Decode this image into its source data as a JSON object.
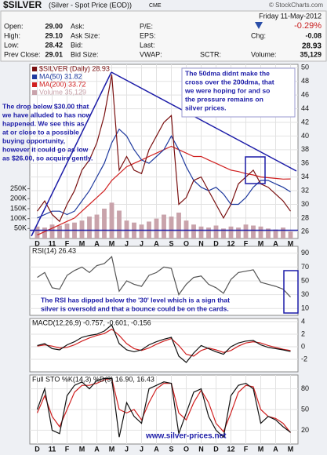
{
  "header": {
    "title": "$SILVER",
    "subtitle": "(Silver - Spot Price (EOD))",
    "exchange": "CME",
    "credit": "© StockCharts.com",
    "date": "Friday 11-May-2012",
    "change_pct": "-0.29%",
    "last": "28.93",
    "cells": [
      {
        "label": "Open:",
        "value": "29.00"
      },
      {
        "label": "High:",
        "value": "29.10"
      },
      {
        "label": "Low:",
        "value": "28.42"
      },
      {
        "label": "Prev Close:",
        "value": "29.01"
      },
      {
        "label": "Ask:"
      },
      {
        "label": "Ask Size:"
      },
      {
        "label": "Bid:"
      },
      {
        "label": "Bid Size:"
      },
      {
        "label": "P/E:"
      },
      {
        "label": "EPS:"
      },
      {
        "label": "Last:"
      },
      {
        "label": "VWAP:"
      },
      {
        "label": "SCTR:"
      },
      {
        "label": "Chg:",
        "value": "-0.08"
      },
      {
        "label": "Volume:",
        "value": "35,129"
      }
    ]
  },
  "chart_data": [
    {
      "type": "line",
      "x": [
        0,
        0.5,
        1,
        1.5,
        2,
        2.5,
        3,
        3.5,
        4,
        4.5,
        5,
        5.5,
        6,
        6.5,
        7,
        7.5,
        8,
        8.5,
        9,
        9.5,
        10,
        10.5,
        11,
        11.5,
        12,
        12.5,
        13,
        13.5,
        14,
        14.5,
        15,
        15.5,
        16,
        16.5,
        17
      ],
      "xlim": [
        -0.5,
        17.5
      ],
      "xticks": [
        {
          "value": 0,
          "label": "D"
        },
        {
          "value": 1,
          "label": "11"
        },
        {
          "value": 2,
          "label": "F"
        },
        {
          "value": 3,
          "label": "M"
        },
        {
          "value": 4,
          "label": "A"
        },
        {
          "value": 5,
          "label": "M"
        },
        {
          "value": 6,
          "label": "J"
        },
        {
          "value": 7,
          "label": "J"
        },
        {
          "value": 8,
          "label": "A"
        },
        {
          "value": 9,
          "label": "S"
        },
        {
          "value": 10,
          "label": "O"
        },
        {
          "value": 11,
          "label": "N"
        },
        {
          "value": 12,
          "label": "D"
        },
        {
          "value": 13,
          "label": "12"
        },
        {
          "value": 14,
          "label": "F"
        },
        {
          "value": 15,
          "label": "M"
        },
        {
          "value": 16,
          "label": "A"
        },
        {
          "value": 17,
          "label": "M"
        }
      ],
      "ylim": [
        25,
        50.5
      ],
      "yticks": [
        26,
        28,
        30,
        32,
        34,
        36,
        38,
        40,
        42,
        44,
        46,
        48,
        50
      ],
      "y2lim": [
        0,
        875000
      ],
      "y2ticks": [
        {
          "value": 50000,
          "label": "50K"
        },
        {
          "value": 100000,
          "label": "100K"
        },
        {
          "value": 150000,
          "label": "150K"
        },
        {
          "value": 200000,
          "label": "200K"
        },
        {
          "value": 250000,
          "label": "250K"
        }
      ],
      "grid": true,
      "series": [
        {
          "name": "Volume 35,129",
          "kind": "bar",
          "axis": "y2",
          "color": "#c9a3ab",
          "values": [
            60000,
            55000,
            70000,
            65000,
            75000,
            80000,
            90000,
            110000,
            120000,
            150000,
            180000,
            140000,
            90000,
            80000,
            70000,
            85000,
            100000,
            120000,
            110000,
            130000,
            90000,
            70000,
            60000,
            55000,
            65000,
            50000,
            60000,
            55000,
            70000,
            65000,
            60000,
            50000,
            45000,
            55000,
            35129
          ]
        },
        {
          "name": "MA(200) 33.72",
          "color": "#d02020",
          "values": [
            25.5,
            26,
            26.5,
            27,
            27.5,
            28,
            29,
            30,
            31,
            32,
            33.5,
            34.5,
            35.5,
            36,
            36.5,
            37,
            37.5,
            38,
            38.5,
            38,
            37.5,
            37,
            37,
            36.5,
            36,
            35.5,
            35,
            34.8,
            34.5,
            34.3,
            34,
            33.9,
            33.8,
            33.7,
            33.72
          ]
        },
        {
          "name": "MA(50) 31.82",
          "color": "#1f3a9e",
          "values": [
            28,
            28.5,
            29,
            29,
            28.5,
            29,
            30.5,
            32,
            34,
            36,
            39,
            41,
            40,
            38,
            36.5,
            36,
            37,
            38,
            40,
            38,
            35.5,
            33.5,
            32.5,
            32,
            32.5,
            31.5,
            30,
            30,
            31,
            32.5,
            33.5,
            33.5,
            33,
            32.5,
            31.82
          ]
        },
        {
          "name": "$SILVER (Daily) 28.93",
          "color": "#7a1010",
          "values": [
            29,
            30.5,
            28.5,
            27.5,
            30,
            32,
            35,
            36.5,
            39,
            43,
            49,
            35,
            37,
            35,
            34.5,
            38,
            40,
            42,
            43,
            30,
            31,
            33.5,
            34,
            32,
            30,
            28,
            30,
            33,
            34,
            35,
            33,
            32.5,
            31.5,
            30.5,
            29
          ]
        }
      ],
      "annotations": [
        {
          "lines": [
            "The 50dma didnt make the",
            "cross over the 200dma, that",
            "we were hoping for and so",
            "the pressure remains on",
            "silver prices."
          ]
        },
        {
          "lines": [
            "The drop below $30.00 that",
            "we have alluded to has now",
            "happened. We see this as",
            "at or close to a possible",
            "buying opportunity,",
            "however it could go as low",
            "as $26.00, so acquire gently."
          ]
        }
      ]
    },
    {
      "type": "line",
      "title": "RSI(14) 26.43",
      "x": [
        0,
        0.5,
        1,
        1.5,
        2,
        2.5,
        3,
        3.5,
        4,
        4.5,
        5,
        5.5,
        6,
        6.5,
        7,
        7.5,
        8,
        8.5,
        9,
        9.5,
        10,
        10.5,
        11,
        11.5,
        12,
        12.5,
        13,
        13.5,
        14,
        14.5,
        15,
        15.5,
        16,
        16.5,
        17
      ],
      "xlim": [
        -0.5,
        17.5
      ],
      "ylim": [
        0,
        100
      ],
      "yticks": [
        10,
        30,
        50,
        70,
        90
      ],
      "grid": true,
      "series": [
        {
          "color": "#555555",
          "values": [
            55,
            62,
            40,
            38,
            58,
            65,
            70,
            62,
            72,
            75,
            85,
            35,
            50,
            45,
            42,
            58,
            62,
            70,
            68,
            30,
            45,
            55,
            57,
            45,
            40,
            32,
            52,
            62,
            64,
            66,
            48,
            45,
            42,
            38,
            26.43
          ]
        }
      ],
      "annotations": [
        {
          "lines": [
            "The RSI has dipped below the '30' level which is a sign that",
            "silver is oversold and that a bounce could be on the cards."
          ]
        }
      ]
    },
    {
      "type": "line",
      "title": "MACD(12,26,9) -0.757, -0.601, -0.156",
      "x": [
        0,
        0.5,
        1,
        1.5,
        2,
        2.5,
        3,
        3.5,
        4,
        4.5,
        5,
        5.5,
        6,
        6.5,
        7,
        7.5,
        8,
        8.5,
        9,
        9.5,
        10,
        10.5,
        11,
        11.5,
        12,
        12.5,
        13,
        13.5,
        14,
        14.5,
        15,
        15.5,
        16,
        16.5,
        17
      ],
      "xlim": [
        -0.5,
        17.5
      ],
      "ylim": [
        -4,
        4.5
      ],
      "yticks": [
        -2,
        0,
        2,
        4
      ],
      "grid": true,
      "series": [
        {
          "color": "#d02020",
          "values": [
            0.1,
            0.3,
            0.1,
            -0.2,
            -0.1,
            0.3,
            0.9,
            1.4,
            1.8,
            2.1,
            2.8,
            1.8,
            0.5,
            -0.3,
            -0.6,
            -0.2,
            0.4,
            0.9,
            1.3,
            0.2,
            -1.2,
            -1.5,
            -0.6,
            -0.2,
            -0.5,
            -0.9,
            -0.6,
            0.1,
            0.6,
            0.8,
            0.6,
            0.2,
            -0.1,
            -0.4,
            -0.601
          ]
        },
        {
          "color": "#111111",
          "values": [
            0.2,
            0.5,
            -0.3,
            -0.5,
            0.3,
            0.8,
            1.5,
            1.8,
            2.0,
            2.5,
            3.5,
            0.5,
            -0.5,
            -0.8,
            -0.5,
            0.3,
            0.8,
            1.2,
            1.5,
            -1.5,
            -2.5,
            -1.0,
            0.2,
            -0.3,
            -0.8,
            -1.2,
            0,
            0.6,
            0.9,
            1.0,
            0.3,
            -0.1,
            -0.3,
            -0.5,
            -0.757
          ]
        }
      ]
    },
    {
      "type": "line",
      "title": "Full STO %K(14,3) %D(3) 16.90, 16.43",
      "x": [
        0,
        0.5,
        1,
        1.5,
        2,
        2.5,
        3,
        3.5,
        4,
        4.5,
        5,
        5.5,
        6,
        6.5,
        7,
        7.5,
        8,
        8.5,
        9,
        9.5,
        10,
        10.5,
        11,
        11.5,
        12,
        12.5,
        13,
        13.5,
        14,
        14.5,
        15,
        15.5,
        16,
        16.5,
        17
      ],
      "xlim": [
        -0.5,
        17.5
      ],
      "xticks": [
        {
          "value": 0,
          "label": "D"
        },
        {
          "value": 1,
          "label": "11"
        },
        {
          "value": 2,
          "label": "F"
        },
        {
          "value": 3,
          "label": "M"
        },
        {
          "value": 4,
          "label": "A"
        },
        {
          "value": 5,
          "label": "M"
        },
        {
          "value": 6,
          "label": "J"
        },
        {
          "value": 7,
          "label": "J"
        },
        {
          "value": 8,
          "label": "A"
        },
        {
          "value": 9,
          "label": "S"
        },
        {
          "value": 10,
          "label": "O"
        },
        {
          "value": 11,
          "label": "N"
        },
        {
          "value": 12,
          "label": "D"
        },
        {
          "value": 13,
          "label": "12"
        },
        {
          "value": 14,
          "label": "F"
        },
        {
          "value": 15,
          "label": "M"
        },
        {
          "value": 16,
          "label": "A"
        },
        {
          "value": 17,
          "label": "M"
        }
      ],
      "ylim": [
        0,
        100
      ],
      "yticks": [
        20,
        50,
        80
      ],
      "grid": true,
      "series": [
        {
          "color": "#d02020",
          "values": [
            45,
            70,
            40,
            25,
            50,
            75,
            85,
            85,
            88,
            93,
            95,
            50,
            45,
            50,
            35,
            60,
            80,
            88,
            88,
            45,
            35,
            60,
            78,
            60,
            30,
            18,
            45,
            75,
            85,
            83,
            50,
            40,
            37,
            30,
            16.43
          ]
        },
        {
          "color": "#111111",
          "values": [
            50,
            80,
            20,
            15,
            70,
            85,
            90,
            80,
            92,
            95,
            95,
            10,
            60,
            40,
            30,
            80,
            85,
            90,
            88,
            15,
            45,
            75,
            80,
            40,
            20,
            10,
            70,
            85,
            88,
            80,
            30,
            40,
            35,
            25,
            16.9
          ]
        }
      ],
      "annotations": [
        {
          "lines": [
            "www.silver-prices.net"
          ]
        }
      ]
    }
  ]
}
